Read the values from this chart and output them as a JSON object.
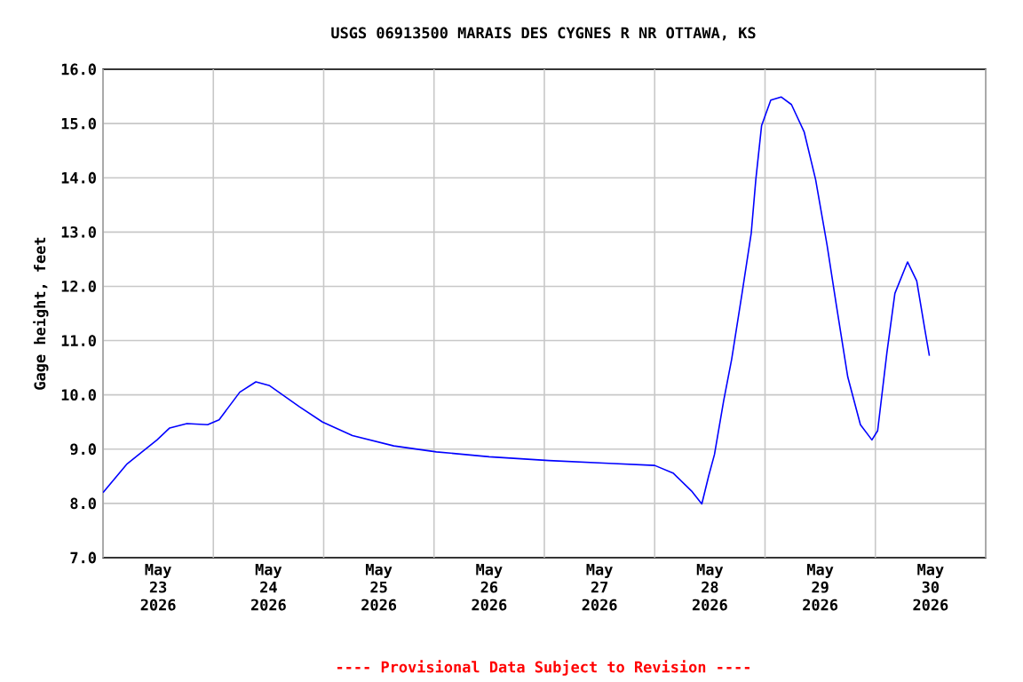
{
  "chart_data": {
    "type": "line",
    "title": "USGS 06913500 MARAIS DES CYGNES R NR OTTAWA, KS",
    "ylabel": "Gage height, feet",
    "annotations": [
      "---- Provisional Data Subject to Revision ----"
    ],
    "x": [
      "2026-05-23T00:00",
      "2026-05-23T05:15",
      "2026-05-23T11:45",
      "2026-05-23T14:30",
      "2026-05-23T18:15",
      "2026-05-23T22:45",
      "2026-05-24T01:15",
      "2026-05-24T05:45",
      "2026-05-24T09:15",
      "2026-05-24T12:15",
      "2026-05-24T18:45",
      "2026-05-24T23:45",
      "2026-05-25T06:15",
      "2026-05-25T15:15",
      "2026-05-26T00:30",
      "2026-05-26T12:00",
      "2026-05-27T01:00",
      "2026-05-27T14:00",
      "2026-05-28T00:00",
      "2026-05-28T04:00",
      "2026-05-28T08:00",
      "2026-05-28T10:15",
      "2026-05-28T11:45",
      "2026-05-28T13:00",
      "2026-05-28T15:00",
      "2026-05-28T16:45",
      "2026-05-28T19:00",
      "2026-05-28T21:00",
      "2026-05-28T22:00",
      "2026-05-28T23:15",
      "2026-05-29T01:15",
      "2026-05-29T03:30",
      "2026-05-29T05:45",
      "2026-05-29T08:30",
      "2026-05-29T11:00",
      "2026-05-29T13:30",
      "2026-05-29T15:30",
      "2026-05-29T18:00",
      "2026-05-29T20:45",
      "2026-05-29T23:15",
      "2026-05-30T00:30",
      "2026-05-30T02:30",
      "2026-05-30T04:15",
      "2026-05-30T07:00",
      "2026-05-30T09:00",
      "2026-05-30T10:45",
      "2026-05-30T11:45"
    ],
    "series": [
      {
        "color": "#0000ff",
        "values": [
          8.2,
          8.73,
          9.17,
          9.39,
          9.47,
          9.45,
          9.54,
          10.05,
          10.24,
          10.17,
          9.78,
          9.5,
          9.25,
          9.06,
          8.95,
          8.86,
          8.79,
          8.74,
          8.7,
          8.56,
          8.23,
          7.99,
          8.51,
          8.9,
          9.89,
          10.66,
          11.87,
          12.98,
          13.97,
          14.96,
          15.43,
          15.49,
          15.35,
          14.85,
          13.97,
          12.76,
          11.66,
          10.33,
          9.45,
          9.17,
          9.34,
          10.77,
          11.87,
          12.45,
          12.1,
          11.21,
          10.72
        ]
      }
    ],
    "xlim": [
      "2026-05-23",
      "2026-05-31"
    ],
    "xticks": [
      {
        "value": "2026-05-23",
        "label": null
      },
      {
        "value": "2026-05-23T12:00",
        "label": "May 23 2026"
      },
      {
        "value": "2026-05-24",
        "label": null
      },
      {
        "value": "2026-05-24T12:00",
        "label": "May 24 2026"
      },
      {
        "value": "2026-05-25",
        "label": null
      },
      {
        "value": "2026-05-25T12:00",
        "label": "May 25 2026"
      },
      {
        "value": "2026-05-26",
        "label": null
      },
      {
        "value": "2026-05-26T12:00",
        "label": "May 26 2026"
      },
      {
        "value": "2026-05-27",
        "label": null
      },
      {
        "value": "2026-05-27T12:00",
        "label": "May 27 2026"
      },
      {
        "value": "2026-05-28",
        "label": null
      },
      {
        "value": "2026-05-28T12:00",
        "label": "May 28 2026"
      },
      {
        "value": "2026-05-29",
        "label": null
      },
      {
        "value": "2026-05-29T12:00",
        "label": "May 29 2026"
      },
      {
        "value": "2026-05-30",
        "label": null
      },
      {
        "value": "2026-05-30T12:00",
        "label": "May 30 2026"
      },
      {
        "value": "2026-05-31",
        "label": null
      }
    ],
    "ylim": [
      7,
      16
    ],
    "yticks": [
      {
        "value": 7,
        "label": "7.0"
      },
      {
        "value": 8,
        "label": "8.0"
      },
      {
        "value": 9,
        "label": "9.0"
      },
      {
        "value": 10,
        "label": "10.0"
      },
      {
        "value": 11,
        "label": "11.0"
      },
      {
        "value": 12,
        "label": "12.0"
      },
      {
        "value": 13,
        "label": "13.0"
      },
      {
        "value": 14,
        "label": "14.0"
      },
      {
        "value": 15,
        "label": "15.0"
      },
      {
        "value": 16,
        "label": "16.0"
      }
    ],
    "grid": true,
    "marker": "none",
    "line_style": "solid"
  }
}
